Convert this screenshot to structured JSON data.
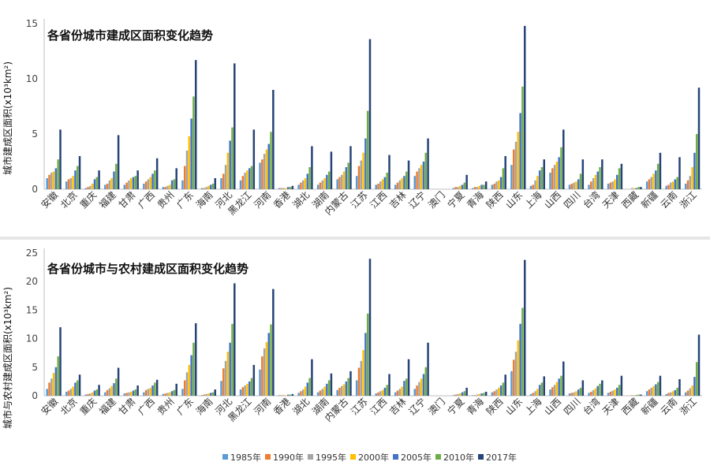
{
  "provinces": [
    "安徽",
    "北京",
    "重庆",
    "福建",
    "甘肃",
    "广西",
    "贵州",
    "广东",
    "海南",
    "河北",
    "黑龙江",
    "河南",
    "香港",
    "湖北",
    "湖南",
    "内蒙古",
    "江苏",
    "江西",
    "吉林",
    "辽宁",
    "澳门",
    "宁夏",
    "青海",
    "陕西",
    "山东",
    "上海",
    "山西",
    "四川",
    "台湾",
    "天津",
    "西藏",
    "新疆",
    "云南",
    "浙江"
  ],
  "colors": [
    "#5b9bd5",
    "#ed7d31",
    "#a5a5a5",
    "#ffc000",
    "#4472c4",
    "#70ad47",
    "#264478"
  ],
  "chart_data": [
    {
      "type": "bar",
      "title": "各省份城市建成区面积变化趋势",
      "ylabel": "城市建成区面积(x10³km²)",
      "xlabel": "",
      "ylim": [
        0,
        15
      ],
      "yticks": [
        0,
        5,
        10,
        15
      ],
      "grid": false,
      "series": [
        {
          "name": "1985年",
          "values": [
            1.0,
            0.7,
            0.1,
            0.4,
            0.4,
            0.5,
            0.2,
            0.8,
            0.1,
            1.0,
            0.8,
            2.4,
            0.1,
            0.4,
            0.4,
            0.9,
            1.2,
            0.4,
            0.4,
            1.2,
            0.0,
            0.1,
            0.1,
            0.4,
            2.2,
            0.3,
            1.5,
            0.4,
            0.4,
            0.5,
            0.0,
            0.7,
            0.3,
            0.5
          ]
        },
        {
          "name": "1990年",
          "values": [
            1.3,
            0.9,
            0.2,
            0.5,
            0.6,
            0.7,
            0.2,
            2.1,
            0.1,
            1.4,
            1.2,
            2.7,
            0.1,
            0.6,
            0.6,
            1.1,
            2.1,
            0.5,
            0.6,
            1.6,
            0.0,
            0.2,
            0.2,
            0.5,
            3.6,
            0.4,
            1.9,
            0.5,
            0.7,
            0.6,
            0.0,
            0.9,
            0.4,
            0.8
          ]
        },
        {
          "name": "1995年",
          "values": [
            1.5,
            1.0,
            0.3,
            0.8,
            0.8,
            0.9,
            0.3,
            3.5,
            0.2,
            2.2,
            1.5,
            3.2,
            0.1,
            0.8,
            0.8,
            1.3,
            2.6,
            0.7,
            0.8,
            1.9,
            0.0,
            0.2,
            0.2,
            0.7,
            4.3,
            0.8,
            2.2,
            0.6,
            1.0,
            0.7,
            0.1,
            1.1,
            0.6,
            1.2
          ]
        },
        {
          "name": "2000年",
          "values": [
            1.6,
            1.2,
            0.5,
            1.0,
            1.0,
            1.1,
            0.4,
            4.8,
            0.3,
            3.3,
            1.7,
            3.6,
            0.1,
            1.0,
            1.0,
            1.6,
            3.3,
            0.9,
            1.0,
            2.2,
            0.0,
            0.3,
            0.3,
            0.8,
            5.2,
            1.2,
            2.5,
            0.7,
            1.3,
            0.9,
            0.1,
            1.4,
            0.7,
            2.0
          ]
        },
        {
          "name": "2005年",
          "values": [
            1.9,
            1.7,
            0.9,
            1.6,
            1.1,
            1.4,
            0.8,
            6.4,
            0.4,
            4.4,
            1.9,
            4.1,
            0.2,
            1.4,
            1.3,
            2.0,
            4.6,
            1.1,
            1.2,
            2.5,
            0.0,
            0.4,
            0.4,
            1.1,
            6.9,
            1.7,
            2.9,
            0.9,
            1.6,
            1.3,
            0.1,
            1.7,
            0.9,
            3.3
          ]
        },
        {
          "name": "2010年",
          "values": [
            2.7,
            2.1,
            1.1,
            2.3,
            1.2,
            1.7,
            0.9,
            8.4,
            0.5,
            5.6,
            2.1,
            5.2,
            0.2,
            2.0,
            1.6,
            2.4,
            7.1,
            1.5,
            1.6,
            3.3,
            0.0,
            0.6,
            0.4,
            1.9,
            9.3,
            2.0,
            3.8,
            1.4,
            2.0,
            1.9,
            0.2,
            2.3,
            1.1,
            5.0
          ]
        },
        {
          "name": "2017年",
          "values": [
            5.4,
            3.0,
            1.7,
            4.9,
            1.7,
            2.8,
            1.9,
            11.7,
            1.0,
            11.4,
            5.4,
            9.0,
            0.3,
            3.9,
            3.4,
            3.9,
            13.6,
            3.1,
            2.6,
            4.6,
            0.0,
            1.3,
            0.7,
            3.0,
            14.8,
            2.7,
            5.4,
            2.7,
            2.7,
            2.3,
            0.2,
            3.3,
            2.9,
            9.2
          ]
        }
      ]
    },
    {
      "type": "bar",
      "title": "各省份城市与农村建成区面积变化趋势",
      "ylabel": "城市与农村建成区面积(x10³km²)",
      "xlabel": "",
      "ylim": [
        0,
        25
      ],
      "yticks": [
        0,
        5,
        10,
        15,
        20,
        25
      ],
      "grid": false,
      "legend_position": "bottom",
      "series": [
        {
          "name": "1985年",
          "values": [
            1.2,
            0.7,
            0.2,
            0.6,
            0.4,
            0.6,
            0.3,
            1.2,
            0.1,
            2.6,
            1.1,
            4.6,
            0.1,
            0.5,
            0.6,
            1.0,
            2.7,
            0.4,
            0.6,
            1.2,
            0.0,
            0.1,
            0.1,
            0.6,
            4.3,
            0.3,
            1.1,
            0.4,
            0.5,
            0.5,
            0.0,
            0.8,
            0.3,
            0.6
          ]
        },
        {
          "name": "1990年",
          "values": [
            2.3,
            0.9,
            0.3,
            1.0,
            0.5,
            1.0,
            0.4,
            2.7,
            0.2,
            4.8,
            1.5,
            6.9,
            0.1,
            0.8,
            0.9,
            1.4,
            4.9,
            0.6,
            0.9,
            1.8,
            0.0,
            0.2,
            0.1,
            0.8,
            6.3,
            0.5,
            1.5,
            0.5,
            0.7,
            0.7,
            0.0,
            1.1,
            0.5,
            0.9
          ]
        },
        {
          "name": "1995年",
          "values": [
            3.0,
            1.2,
            0.4,
            1.3,
            0.6,
            1.2,
            0.5,
            4.1,
            0.3,
            6.1,
            1.8,
            8.3,
            0.1,
            1.1,
            1.2,
            1.7,
            6.1,
            0.8,
            1.2,
            2.4,
            0.0,
            0.3,
            0.2,
            1.1,
            7.7,
            0.8,
            1.9,
            0.6,
            1.0,
            0.9,
            0.1,
            1.4,
            0.6,
            1.3
          ]
        },
        {
          "name": "2000年",
          "values": [
            4.0,
            1.6,
            0.6,
            1.7,
            0.7,
            1.4,
            0.6,
            5.4,
            0.4,
            7.7,
            2.1,
            9.4,
            0.1,
            1.6,
            1.6,
            2.0,
            8.0,
            1.0,
            1.6,
            3.0,
            0.0,
            0.4,
            0.3,
            1.4,
            9.7,
            1.2,
            2.4,
            0.8,
            1.3,
            1.1,
            0.1,
            1.7,
            0.8,
            1.8
          ]
        },
        {
          "name": "2005年",
          "values": [
            5.0,
            2.3,
            0.9,
            2.2,
            0.9,
            1.8,
            0.8,
            7.1,
            0.5,
            9.3,
            2.5,
            11.0,
            0.2,
            2.3,
            2.1,
            2.5,
            11.0,
            1.4,
            2.6,
            3.8,
            0.0,
            0.6,
            0.4,
            1.8,
            12.6,
            1.9,
            3.0,
            1.1,
            1.7,
            1.4,
            0.1,
            2.0,
            1.0,
            3.3
          ]
        },
        {
          "name": "2010年",
          "values": [
            6.9,
            2.7,
            1.1,
            3.0,
            1.1,
            2.3,
            1.0,
            9.3,
            0.6,
            12.6,
            3.1,
            12.5,
            0.2,
            3.1,
            2.7,
            3.1,
            14.4,
            1.9,
            3.0,
            5.0,
            0.0,
            0.8,
            0.5,
            2.3,
            15.4,
            2.3,
            3.5,
            1.4,
            2.1,
            1.9,
            0.2,
            2.4,
            1.4,
            5.9
          ]
        },
        {
          "name": "2017年",
          "values": [
            12.0,
            3.7,
            1.9,
            4.9,
            1.8,
            2.8,
            2.1,
            12.7,
            1.1,
            19.7,
            5.4,
            18.7,
            0.3,
            6.4,
            3.9,
            4.3,
            24.0,
            3.8,
            6.4,
            9.3,
            0.0,
            1.4,
            0.7,
            3.7,
            23.8,
            3.4,
            6.0,
            2.7,
            2.7,
            3.5,
            0.2,
            3.5,
            2.9,
            10.7
          ]
        }
      ]
    }
  ]
}
